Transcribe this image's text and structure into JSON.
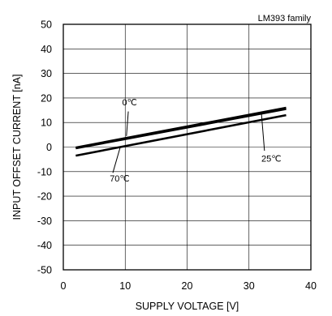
{
  "chart_data": {
    "type": "line",
    "title": "",
    "note": "LM393 family",
    "xlabel": "SUPPLY VOLTAGE [V]",
    "ylabel": "INPUT OFFSET CURRENT [nA]",
    "xlim": [
      0,
      40
    ],
    "ylim": [
      -50,
      50
    ],
    "xticks": [
      0,
      10,
      20,
      30,
      40
    ],
    "yticks": [
      -50,
      -40,
      -30,
      -20,
      -10,
      0,
      10,
      20,
      30,
      40,
      50
    ],
    "grid": true,
    "series": [
      {
        "name": "0℃",
        "x": [
          2,
          36
        ],
        "y": [
          -0.5,
          15.5
        ]
      },
      {
        "name": "25℃",
        "x": [
          2,
          36
        ],
        "y": [
          -0.2,
          16.0
        ]
      },
      {
        "name": "70℃",
        "x": [
          2,
          36
        ],
        "y": [
          -3.5,
          13.0
        ]
      }
    ],
    "annotations": [
      {
        "text": "0℃",
        "x": 9.5,
        "y": 17
      },
      {
        "text": "25℃",
        "x": 32,
        "y": -6
      },
      {
        "text": "70℃",
        "x": 7.5,
        "y": -14
      }
    ],
    "annotation_pointers": [
      {
        "series": "0℃",
        "from": [
          10.5,
          14.5
        ],
        "to": [
          10.2,
          4.5
        ]
      },
      {
        "series": "25℃",
        "from": [
          32.5,
          -1.5
        ],
        "to": [
          32.0,
          14.0
        ]
      },
      {
        "series": "70℃",
        "from": [
          8.0,
          -10.5
        ],
        "to": [
          9.2,
          0.0
        ]
      }
    ]
  }
}
